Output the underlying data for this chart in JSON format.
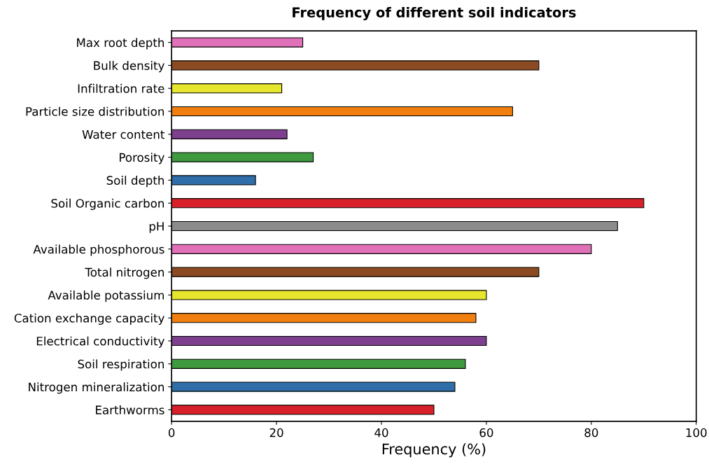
{
  "chart_data": {
    "type": "bar",
    "orientation": "horizontal",
    "title": "Frequency of different soil indicators",
    "xlabel": "Frequency (%)",
    "categories": [
      "Max root depth",
      "Bulk density",
      "Infiltration rate",
      "Particle size distribution",
      "Water content",
      "Porosity",
      "Soil depth",
      "Soil Organic carbon",
      "pH",
      "Available phosphorous",
      "Total nitrogen",
      "Available potassium",
      "Cation exchange capacity",
      "Electrical conductivity",
      "Soil respiration",
      "Nitrogen mineralization",
      "Earthworms"
    ],
    "values": [
      25,
      70,
      21,
      65,
      22,
      27,
      16,
      90,
      85,
      80,
      70,
      60,
      58,
      60,
      56,
      54,
      50
    ],
    "colors": [
      "#e070b8",
      "#8b4a22",
      "#e6e62e",
      "#f07f10",
      "#7e3f8e",
      "#3f9a3f",
      "#2f6ea8",
      "#d8202a",
      "#8c8c8c",
      "#e070b8",
      "#8b4a22",
      "#e6e62e",
      "#f07f10",
      "#7e3f8e",
      "#3f9a3f",
      "#2f6ea8",
      "#d8202a"
    ],
    "xlim": [
      0,
      100
    ],
    "xticks": [
      0,
      20,
      40,
      60,
      80,
      100
    ],
    "grid": false,
    "legend": false
  }
}
